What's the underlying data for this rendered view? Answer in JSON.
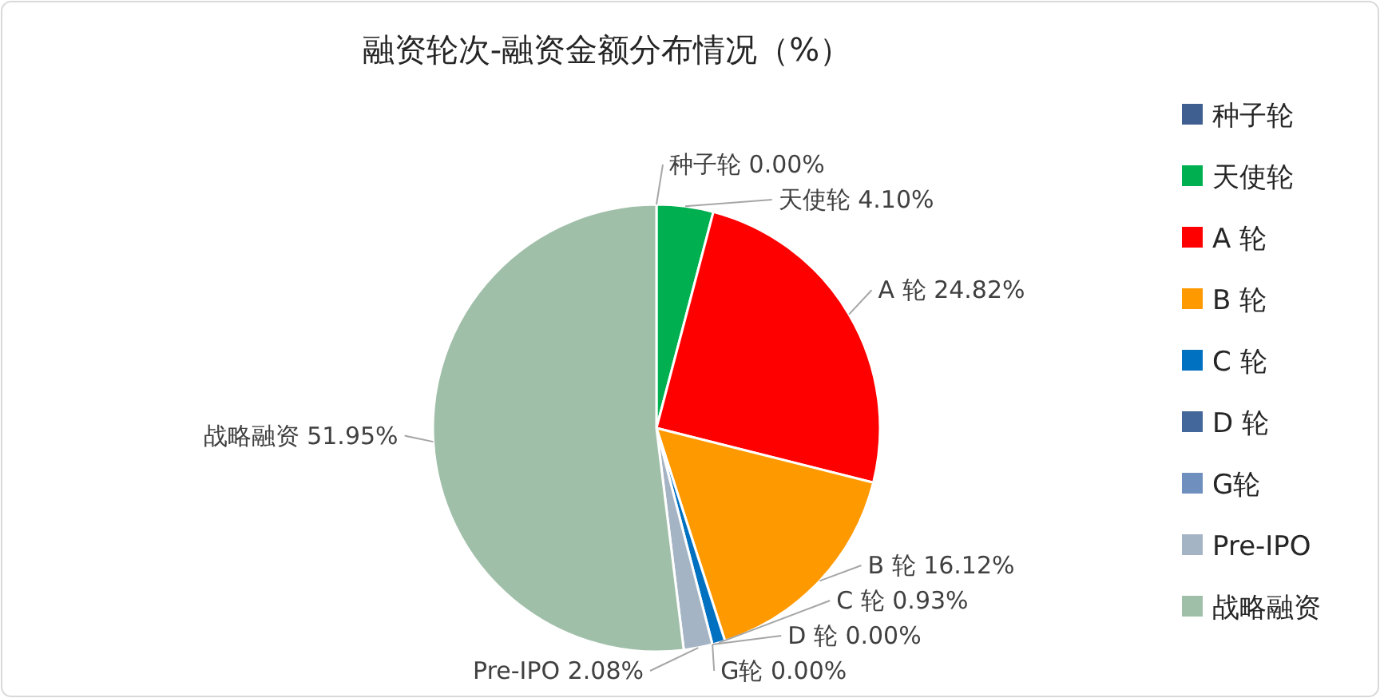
{
  "chart_data": {
    "type": "pie",
    "title": "融资轮次-融资金额分布情况（%）",
    "categories": [
      "种子轮",
      "天使轮",
      "A 轮",
      "B 轮",
      "C 轮",
      "D 轮",
      "G轮",
      "Pre-IPO",
      "战略融资"
    ],
    "values": [
      0,
      4.1,
      24.82,
      16.12,
      0.93,
      0,
      0,
      2.08,
      51.95
    ],
    "colors": [
      "#3e5f8f",
      "#00b050",
      "#ff0000",
      "#ff9900",
      "#0070c0",
      "#44679b",
      "#6f8fbf",
      "#a5b4c4",
      "#a0bfa9"
    ],
    "value_labels": [
      "0.00%",
      "4.10%",
      "24.82%",
      "16.12%",
      "0.93%",
      "0.00%",
      "0.00%",
      "2.08%",
      "51.95%"
    ],
    "legend": "right"
  }
}
